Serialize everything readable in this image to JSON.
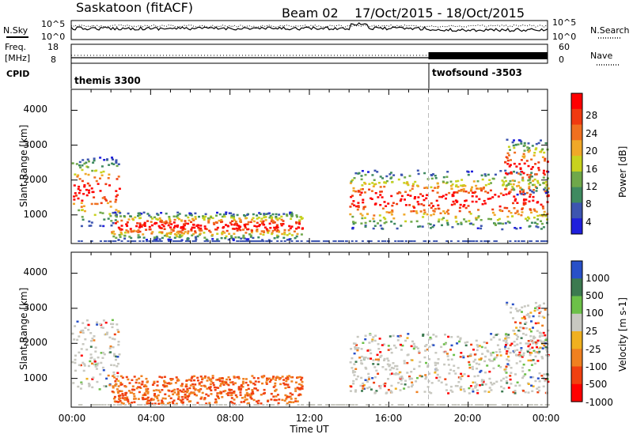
{
  "header": {
    "station": "Saskatoon (fitACF)",
    "beam": "Beam 02",
    "date_range": "17/Oct/2015 - 18/Oct/2015"
  },
  "strips": {
    "nsky_label": "N.Sky",
    "nsky_ticks": [
      "10^5",
      "10^0"
    ],
    "nsearch_label": "N.Search",
    "freq_label": "Freq.",
    "freq_unit": "[MHz]",
    "freq_ticks": [
      "18",
      "8"
    ],
    "nave_label": "Nave",
    "nave_ticks": [
      "60",
      "0"
    ],
    "cpid_label": "CPID",
    "cpid_modes": [
      {
        "name": "themis 3300",
        "start_hour": 0
      },
      {
        "name": "twofsound -3503",
        "start_hour": 18
      }
    ]
  },
  "chart_data": [
    {
      "type": "heatmap",
      "title": "",
      "xlabel": "",
      "ylabel": "Slant Range [km]",
      "ylim": [
        180,
        4600
      ],
      "xlim_hours": [
        0,
        24
      ],
      "y_ticks": [
        "1000",
        "2000",
        "3000",
        "4000"
      ],
      "colorbar_label": "Power [dB]",
      "colorbar_ticks": [
        "4",
        "8",
        "12",
        "16",
        "20",
        "24",
        "28"
      ],
      "colorbar_colors": [
        "#1f1fdc",
        "#3d55b0",
        "#3f8a60",
        "#6fa84a",
        "#c8d21e",
        "#f0a828",
        "#f07020",
        "#f03a10",
        "#ff0000"
      ],
      "colorbar_range": [
        0,
        30
      ],
      "echo_regions": [
        {
          "t0": 0.0,
          "t1": 2.4,
          "r0": 700,
          "r1": 2700
        },
        {
          "t0": 2.0,
          "t1": 11.6,
          "r0": 300,
          "r1": 1100
        },
        {
          "t0": 14.0,
          "t1": 24.0,
          "r0": 600,
          "r1": 2300
        },
        {
          "t0": 21.8,
          "t1": 24.0,
          "r0": 1600,
          "r1": 3200
        }
      ]
    },
    {
      "type": "heatmap",
      "title": "",
      "xlabel": "Time UT",
      "ylabel": "Slant Range [km]",
      "ylim": [
        180,
        4600
      ],
      "xlim_hours": [
        0,
        24
      ],
      "y_ticks": [
        "1000",
        "2000",
        "3000",
        "4000"
      ],
      "x_ticks": [
        "00:00",
        "04:00",
        "08:00",
        "12:00",
        "16:00",
        "20:00",
        "00:00"
      ],
      "colorbar_label": "Velocity [m s-1]",
      "colorbar_ticks": [
        "1000",
        "500",
        "100",
        "25",
        "-25",
        "-100",
        "-500",
        "-1000"
      ],
      "colorbar_colors": [
        "#2850c8",
        "#3c7a50",
        "#6cc048",
        "#c8c8c0",
        "#f0b020",
        "#f08020",
        "#f04010",
        "#ff0000"
      ]
    }
  ]
}
